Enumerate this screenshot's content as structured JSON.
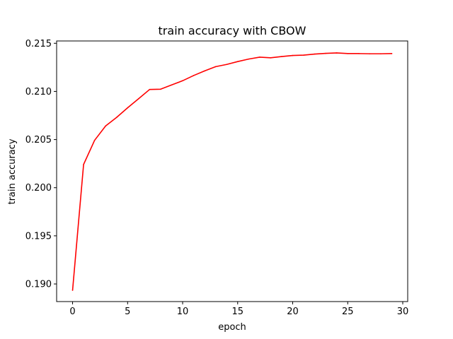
{
  "chart_data": {
    "type": "line",
    "title": "train accuracy with CBOW",
    "xlabel": "epoch",
    "ylabel": "train accuracy",
    "xlim": [
      -1.45,
      30.45
    ],
    "ylim": [
      0.18817,
      0.21524
    ],
    "xticks": [
      0,
      5,
      10,
      15,
      20,
      25,
      30
    ],
    "xtick_labels": [
      "0",
      "5",
      "10",
      "15",
      "20",
      "25",
      "30"
    ],
    "yticks": [
      0.19,
      0.195,
      0.2,
      0.205,
      0.21,
      0.215
    ],
    "ytick_labels": [
      "0.190",
      "0.195",
      "0.200",
      "0.205",
      "0.210",
      "0.215"
    ],
    "grid": false,
    "colors": {
      "line": "#ff0000",
      "axes": "#000000",
      "background": "#ffffff"
    },
    "series": [
      {
        "x": [
          0,
          1,
          2,
          3,
          4,
          5,
          6,
          7,
          8,
          9,
          10,
          11,
          12,
          13,
          14,
          15,
          16,
          17,
          18,
          19,
          20,
          21,
          22,
          23,
          24,
          25,
          26,
          27,
          28,
          29
        ],
        "values": [
          0.18935,
          0.20241,
          0.20492,
          0.20641,
          0.2073,
          0.2083,
          0.20924,
          0.2102,
          0.21023,
          0.21067,
          0.21111,
          0.21165,
          0.21213,
          0.21257,
          0.2128,
          0.2131,
          0.21336,
          0.21356,
          0.21349,
          0.21362,
          0.21373,
          0.21377,
          0.21388,
          0.21395,
          0.214,
          0.21393,
          0.21393,
          0.21391,
          0.21391,
          0.21393
        ]
      }
    ]
  }
}
